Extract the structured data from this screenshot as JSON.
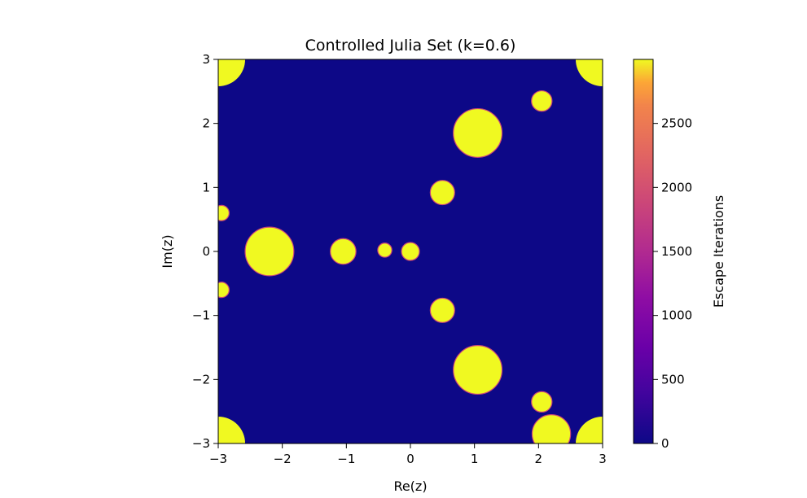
{
  "chart_data": {
    "type": "heatmap",
    "title": "Controlled Julia Set (k=0.6)",
    "xlabel": "Re(z)",
    "ylabel": "Im(z)",
    "xlim": [
      -3,
      3
    ],
    "ylim": [
      -3,
      3
    ],
    "x_ticks": [
      {
        "value": -3,
        "label": "−3"
      },
      {
        "value": -2,
        "label": "−2"
      },
      {
        "value": -1,
        "label": "−1"
      },
      {
        "value": 0,
        "label": "0"
      },
      {
        "value": 1,
        "label": "1"
      },
      {
        "value": 2,
        "label": "2"
      },
      {
        "value": 3,
        "label": "3"
      }
    ],
    "y_ticks": [
      {
        "value": 3,
        "label": "3"
      },
      {
        "value": 2,
        "label": "2"
      },
      {
        "value": 1,
        "label": "1"
      },
      {
        "value": 0,
        "label": "0"
      },
      {
        "value": -1,
        "label": "−1"
      },
      {
        "value": -2,
        "label": "−2"
      },
      {
        "value": -3,
        "label": "−3"
      }
    ],
    "colorbar": {
      "label": "Escape Iterations",
      "colormap": "plasma",
      "range": [
        0,
        3000
      ],
      "ticks": [
        {
          "value": 0,
          "label": "0"
        },
        {
          "value": 500,
          "label": "500"
        },
        {
          "value": 1000,
          "label": "1000"
        },
        {
          "value": 1500,
          "label": "1500"
        },
        {
          "value": 2000,
          "label": "2000"
        },
        {
          "value": 2500,
          "label": "2500"
        }
      ]
    },
    "grid": false,
    "colors": {
      "background_region": "#0d0887",
      "set_region": "#f0f921",
      "boundary": "#cc4778"
    },
    "regions": {
      "bounded_value": 3000,
      "escape_value": 0,
      "centers": [
        {
          "x": 0,
          "y": 0,
          "r": 0.14
        },
        {
          "x": -0.4,
          "y": 0.02,
          "r": 0.11
        },
        {
          "x": -1.05,
          "y": 0,
          "r": 0.2
        },
        {
          "x": -2.2,
          "y": 0,
          "r": 0.38
        },
        {
          "x": 1.05,
          "y": 1.85,
          "r": 0.38
        },
        {
          "x": 1.05,
          "y": -1.85,
          "r": 0.38
        },
        {
          "x": 0.5,
          "y": 0.92,
          "r": 0.19
        },
        {
          "x": 0.5,
          "y": -0.92,
          "r": 0.19
        },
        {
          "x": -2.95,
          "y": 0.6,
          "r": 0.12
        },
        {
          "x": -2.95,
          "y": -0.6,
          "r": 0.12
        },
        {
          "x": 2.05,
          "y": 2.35,
          "r": 0.16
        },
        {
          "x": 2.05,
          "y": -2.35,
          "r": 0.16
        },
        {
          "x": 2.2,
          "y": -2.85,
          "r": 0.3
        }
      ]
    }
  }
}
